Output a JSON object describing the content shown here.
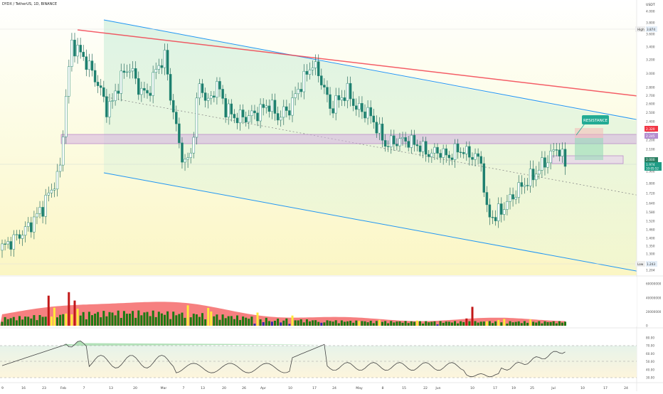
{
  "header": {
    "title": "DYDX / TetherUS, 1D, BINANCE"
  },
  "price_axis": {
    "unit": "USDT",
    "ticks": [
      "4.000",
      "3.800",
      "3.600",
      "3.400",
      "3.200",
      "3.000",
      "2.800",
      "2.700",
      "2.600",
      "2.500",
      "2.400",
      "2.300",
      "2.200",
      "2.100",
      "2.000",
      "1.900",
      "1.800",
      "1.720",
      "1.640",
      "1.580",
      "1.520",
      "1.460",
      "1.400",
      "1.350",
      "1.300",
      "1.250",
      "1.204"
    ],
    "high_label": "High",
    "high_value": "3.874",
    "low_label": "Low",
    "low_value": "1.243",
    "badge_red": "2.320",
    "badge_purple": "2.245",
    "badge_mid": "2.000",
    "badge_green_price": "1.974",
    "badge_green_time": "10:05:52"
  },
  "time_axis": {
    "labels": [
      "9",
      "16",
      "23",
      "Feb",
      "7",
      "13",
      "20",
      "Mar",
      "7",
      "13",
      "20",
      "26",
      "Apr",
      "10",
      "17",
      "24",
      "May",
      "8",
      "15",
      "22",
      "Jun",
      "10",
      "17",
      "19",
      "25",
      "Jul",
      "10",
      "17",
      "24"
    ]
  },
  "annotation": {
    "label": "RESISTANCE"
  },
  "volume_axis": {
    "ticks": [
      "60000000",
      "40000000",
      "20000000",
      "0"
    ]
  },
  "rsi_axis": {
    "ticks": [
      "80.00",
      "70.00",
      "60.00",
      "50.00",
      "40.00",
      "30.00"
    ]
  },
  "colors": {
    "bull": "#22ab94",
    "bear": "#f23645",
    "channel": "#2196f3",
    "resistance": "#f23645",
    "zone": "#d7b8de",
    "vol_green": "#1b7a12",
    "vol_yellow": "#ffeb3b",
    "vol_red": "#c21818",
    "vol_blue": "#2a2aa8",
    "vol_ma": "#f46a6a",
    "rsi_line": "#444444"
  },
  "chart_data": {
    "type": "candlestick",
    "symbol": "DYDX / TetherUS",
    "interval": "1D",
    "exchange": "BINANCE",
    "y_unit": "USDT",
    "ylim": [
      1.2,
      4.05
    ],
    "high": 3.874,
    "low": 1.243,
    "last_price": 1.974,
    "key_levels": [
      2.32,
      2.245,
      2.0,
      1.974
    ],
    "channel": {
      "upper": [
        [
          "Feb 11",
          3.9
        ],
        [
          "Jul 24",
          2.38
        ]
      ],
      "lower": [
        [
          "Feb 11",
          1.98
        ],
        [
          "Jul 24",
          1.23
        ]
      ]
    },
    "resistance_line": [
      [
        "Feb 03",
        3.87
      ],
      [
        "Jul 24",
        2.69
      ]
    ],
    "support_zone": [
      2.16,
      2.28
    ],
    "volume_ylim": [
      0,
      60000000
    ],
    "rsi_levels": [
      70,
      50,
      30
    ]
  }
}
